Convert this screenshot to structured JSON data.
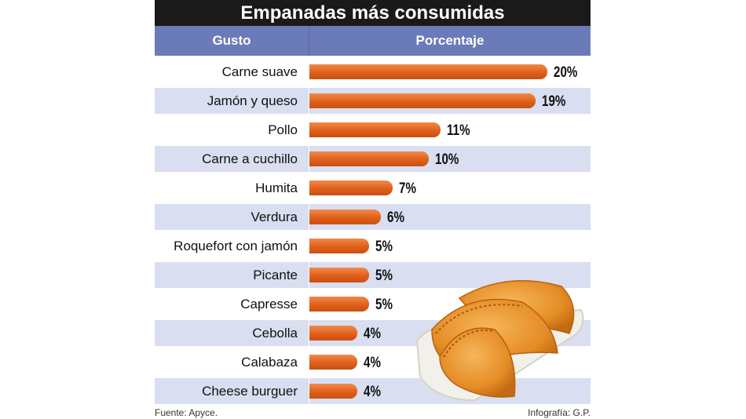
{
  "header": {
    "title": "Empanadas más consumidas"
  },
  "columns": {
    "gusto": "Gusto",
    "porcentaje": "Porcentaje"
  },
  "chart_data": {
    "type": "bar",
    "orientation": "horizontal",
    "categories": [
      "Carne suave",
      "Jamón y queso",
      "Pollo",
      "Carne a cuchillo",
      "Humita",
      "Verdura",
      "Roquefort con jamón",
      "Picante",
      "Capresse",
      "Cebolla",
      "Calabaza",
      "Cheese burguer"
    ],
    "values": [
      20,
      19,
      11,
      10,
      7,
      6,
      5,
      5,
      5,
      4,
      4,
      4
    ],
    "value_labels": [
      "20%",
      "19%",
      "11%",
      "10%",
      "7%",
      "6%",
      "5%",
      "5%",
      "5%",
      "4%",
      "4%",
      "4%"
    ],
    "title": "Empanadas más consumidas",
    "xlim": [
      0,
      20
    ],
    "bar_color": "#e8661e",
    "row_stripe_color": "#d9def0",
    "header_color": "#6b7ab8"
  },
  "footer": {
    "source": "Fuente: Apyce.",
    "credit": "Infografía: G.P."
  }
}
